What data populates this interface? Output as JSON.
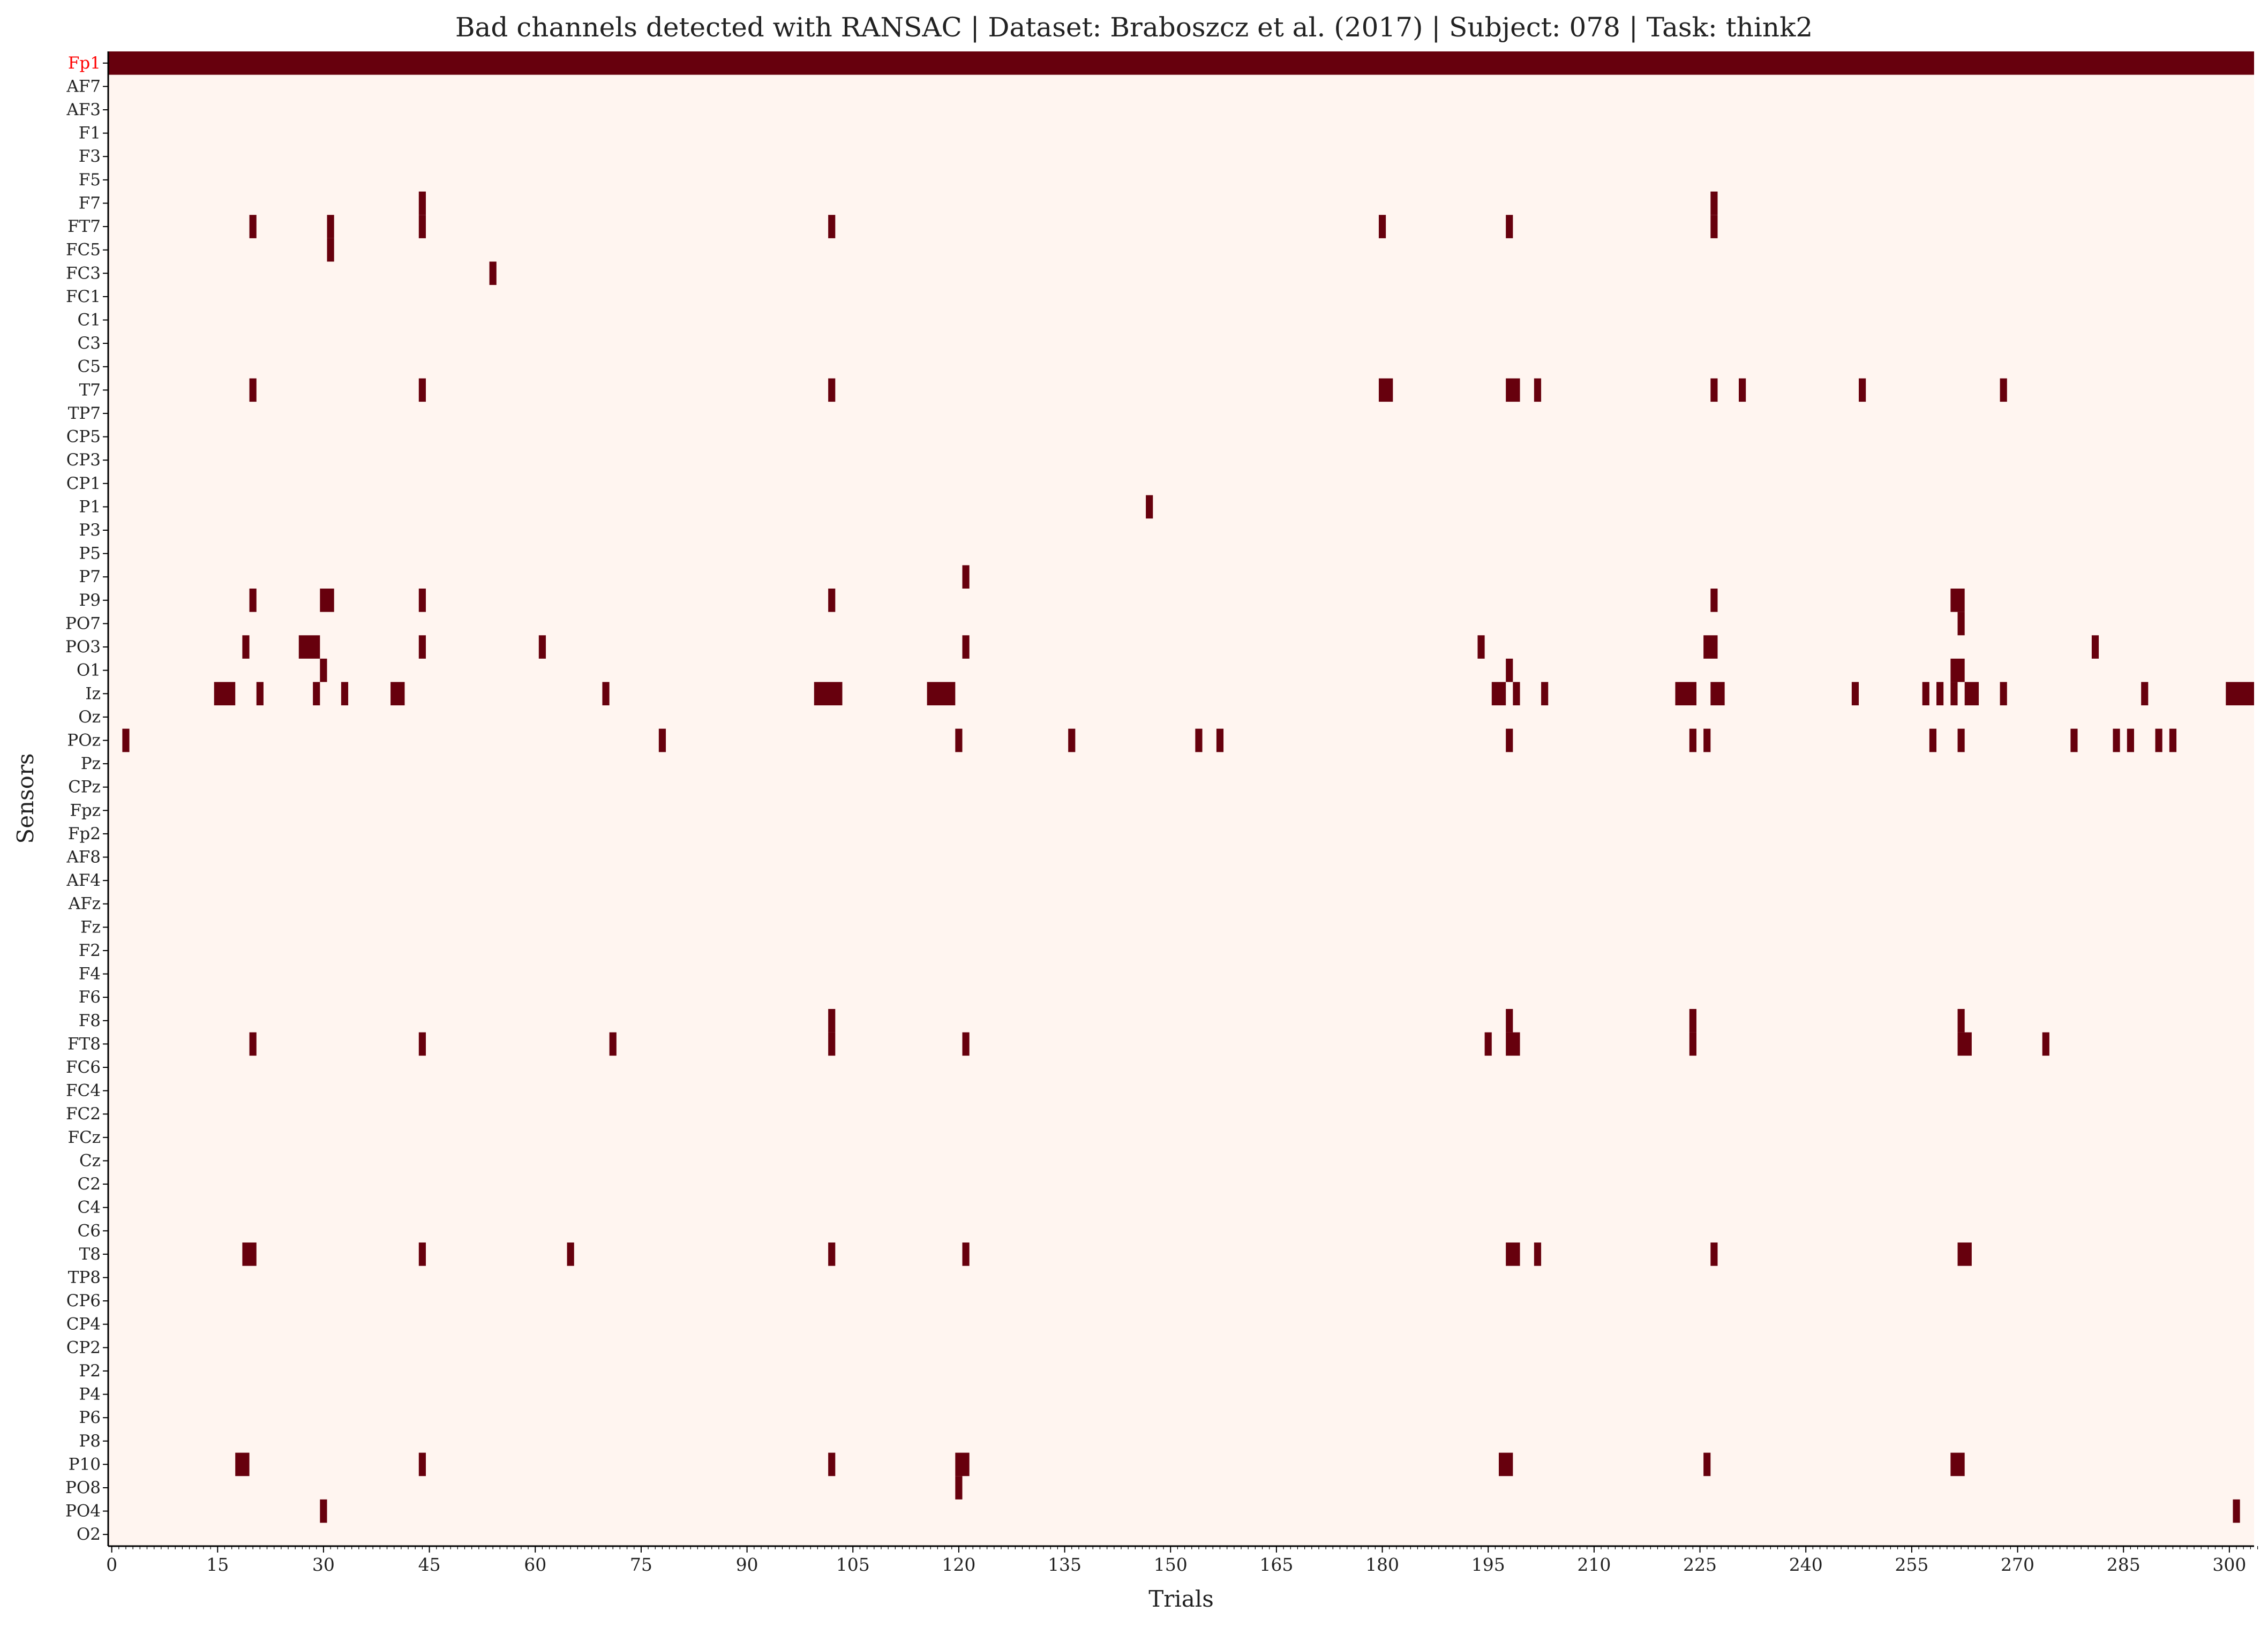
{
  "chart_data": {
    "type": "heatmap",
    "title": "Bad channels detected with RANSAC  |  Dataset: Braboszcz et al. (2017) | Subject: 078 | Task: think2",
    "xlabel": "Trials",
    "ylabel": "Sensors",
    "xlim": [
      0,
      304
    ],
    "xticks": [
      0,
      15,
      30,
      45,
      60,
      75,
      90,
      105,
      120,
      135,
      150,
      165,
      180,
      195,
      210,
      225,
      240,
      255,
      270,
      285,
      300
    ],
    "grid": false,
    "legend": "none",
    "colors": {
      "bad": "#67000d",
      "good": "#fff5f0",
      "highlight_label": "#ff0000",
      "text": "#222222"
    },
    "highlighted_sensors": [
      "Fp1"
    ],
    "sensors": [
      "Fp1",
      "AF7",
      "AF3",
      "F1",
      "F3",
      "F5",
      "F7",
      "FT7",
      "FC5",
      "FC3",
      "FC1",
      "C1",
      "C3",
      "C5",
      "T7",
      "TP7",
      "CP5",
      "CP3",
      "CP1",
      "P1",
      "P3",
      "P5",
      "P7",
      "P9",
      "PO7",
      "PO3",
      "O1",
      "Iz",
      "Oz",
      "POz",
      "Pz",
      "CPz",
      "Fpz",
      "Fp2",
      "AF8",
      "AF4",
      "AFz",
      "Fz",
      "F2",
      "F4",
      "F6",
      "F8",
      "FT8",
      "FC6",
      "FC4",
      "FC2",
      "FCz",
      "Cz",
      "C2",
      "C4",
      "C6",
      "T8",
      "TP8",
      "CP6",
      "CP4",
      "CP2",
      "P2",
      "P4",
      "P6",
      "P8",
      "P10",
      "PO8",
      "PO4",
      "O2"
    ],
    "bad_segments": [
      {
        "sensor": "Fp1",
        "trials": [
          [
            0,
            304
          ]
        ]
      },
      {
        "sensor": "F7",
        "trials": [
          [
            44,
            45
          ],
          [
            227,
            228
          ]
        ]
      },
      {
        "sensor": "FT7",
        "trials": [
          [
            20,
            21
          ],
          [
            31,
            32
          ],
          [
            44,
            45
          ],
          [
            102,
            103
          ],
          [
            180,
            181
          ],
          [
            198,
            199
          ],
          [
            227,
            228
          ]
        ]
      },
      {
        "sensor": "FC5",
        "trials": [
          [
            31,
            32
          ]
        ]
      },
      {
        "sensor": "FC3",
        "trials": [
          [
            54,
            55
          ]
        ]
      },
      {
        "sensor": "T7",
        "trials": [
          [
            20,
            21
          ],
          [
            44,
            45
          ],
          [
            102,
            103
          ],
          [
            180,
            182
          ],
          [
            198,
            200
          ],
          [
            202,
            203
          ],
          [
            227,
            228
          ],
          [
            231,
            232
          ],
          [
            248,
            249
          ],
          [
            268,
            269
          ]
        ]
      },
      {
        "sensor": "P1",
        "trials": [
          [
            147,
            148
          ]
        ]
      },
      {
        "sensor": "P7",
        "trials": [
          [
            121,
            122
          ]
        ]
      },
      {
        "sensor": "P9",
        "trials": [
          [
            20,
            21
          ],
          [
            30,
            32
          ],
          [
            44,
            45
          ],
          [
            102,
            103
          ],
          [
            227,
            228
          ],
          [
            261,
            263
          ]
        ]
      },
      {
        "sensor": "PO7",
        "trials": [
          [
            262,
            263
          ]
        ]
      },
      {
        "sensor": "PO3",
        "trials": [
          [
            19,
            20
          ],
          [
            27,
            30
          ],
          [
            44,
            45
          ],
          [
            61,
            62
          ],
          [
            121,
            122
          ],
          [
            194,
            195
          ],
          [
            226,
            228
          ],
          [
            281,
            282
          ]
        ]
      },
      {
        "sensor": "O1",
        "trials": [
          [
            30,
            31
          ],
          [
            198,
            199
          ],
          [
            261,
            263
          ]
        ]
      },
      {
        "sensor": "Iz",
        "trials": [
          [
            15,
            18
          ],
          [
            21,
            22
          ],
          [
            29,
            30
          ],
          [
            33,
            34
          ],
          [
            40,
            42
          ],
          [
            70,
            71
          ],
          [
            100,
            104
          ],
          [
            116,
            120
          ],
          [
            196,
            198
          ],
          [
            199,
            200
          ],
          [
            203,
            204
          ],
          [
            222,
            225
          ],
          [
            227,
            229
          ],
          [
            247,
            248
          ],
          [
            257,
            258
          ],
          [
            259,
            260
          ],
          [
            261,
            262
          ],
          [
            263,
            265
          ],
          [
            268,
            269
          ],
          [
            288,
            289
          ],
          [
            300,
            304
          ]
        ]
      },
      {
        "sensor": "POz",
        "trials": [
          [
            2,
            3
          ],
          [
            78,
            79
          ],
          [
            120,
            121
          ],
          [
            136,
            137
          ],
          [
            154,
            155
          ],
          [
            157,
            158
          ],
          [
            198,
            199
          ],
          [
            224,
            225
          ],
          [
            226,
            227
          ],
          [
            258,
            259
          ],
          [
            262,
            263
          ],
          [
            278,
            279
          ],
          [
            284,
            285
          ],
          [
            286,
            287
          ],
          [
            290,
            291
          ],
          [
            292,
            293
          ]
        ]
      },
      {
        "sensor": "F8",
        "trials": [
          [
            102,
            103
          ],
          [
            198,
            199
          ],
          [
            224,
            225
          ],
          [
            262,
            263
          ]
        ]
      },
      {
        "sensor": "FT8",
        "trials": [
          [
            20,
            21
          ],
          [
            44,
            45
          ],
          [
            71,
            72
          ],
          [
            102,
            103
          ],
          [
            121,
            122
          ],
          [
            195,
            196
          ],
          [
            198,
            200
          ],
          [
            224,
            225
          ],
          [
            262,
            264
          ],
          [
            274,
            275
          ]
        ]
      },
      {
        "sensor": "T8",
        "trials": [
          [
            19,
            21
          ],
          [
            44,
            45
          ],
          [
            65,
            66
          ],
          [
            102,
            103
          ],
          [
            121,
            122
          ],
          [
            198,
            200
          ],
          [
            202,
            203
          ],
          [
            227,
            228
          ],
          [
            262,
            264
          ]
        ]
      },
      {
        "sensor": "P10",
        "trials": [
          [
            18,
            20
          ],
          [
            44,
            45
          ],
          [
            102,
            103
          ],
          [
            120,
            122
          ],
          [
            197,
            199
          ],
          [
            226,
            227
          ],
          [
            261,
            263
          ]
        ]
      },
      {
        "sensor": "PO8",
        "trials": [
          [
            120,
            121
          ]
        ]
      },
      {
        "sensor": "PO4",
        "trials": [
          [
            30,
            31
          ],
          [
            301,
            302
          ]
        ]
      }
    ]
  }
}
